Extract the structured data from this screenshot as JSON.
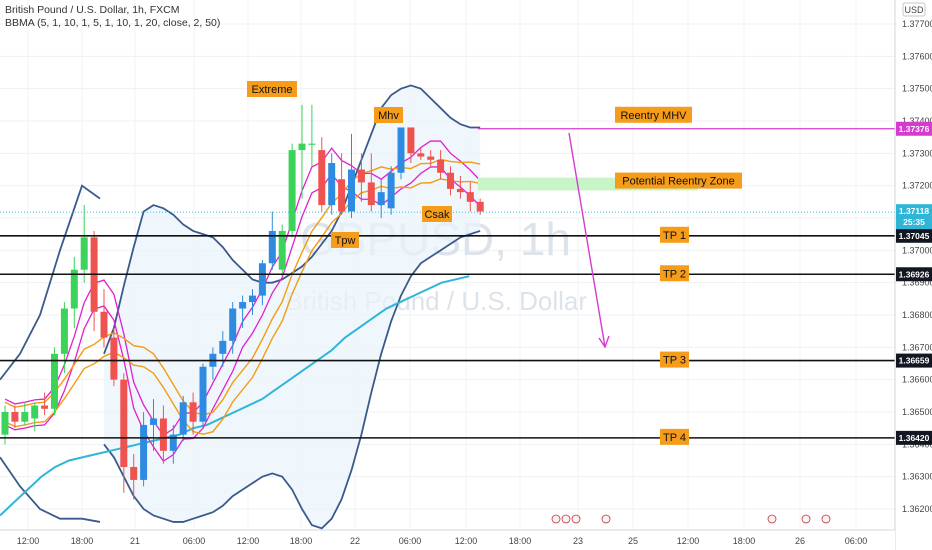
{
  "header": {
    "symbol_line": "British Pound / U.S. Dollar, 1h, FXCM",
    "indicator_line": "BBMA (5, 1, 10, 1, 5, 1, 10, 1, 20, close, 2, 50)"
  },
  "currency": "USD",
  "watermark": {
    "ticker": "GBPUSD, 1h",
    "name": "British Pound / U.S. Dollar"
  },
  "chart_data": {
    "type": "candlestick",
    "y_axis": {
      "range": [
        1.3615,
        1.378
      ],
      "ticks": [
        "1.37700",
        "1.37600",
        "1.37500",
        "1.37400",
        "1.37300",
        "1.37200",
        "1.37100",
        "1.37000",
        "1.36900",
        "1.36800",
        "1.36700",
        "1.36600",
        "1.36500",
        "1.36400",
        "1.36300",
        "1.36200"
      ]
    },
    "x_axis": {
      "ticks": [
        "12:00",
        "18:00",
        "21",
        "06:00",
        "12:00",
        "18:00",
        "22",
        "06:00",
        "12:00",
        "18:00",
        "23",
        "25",
        "12:00",
        "18:00",
        "26",
        "06:00"
      ]
    },
    "candles": [
      {
        "o": 1.3643,
        "h": 1.3652,
        "l": 1.364,
        "c": 1.365
      },
      {
        "o": 1.365,
        "h": 1.3652,
        "l": 1.3645,
        "c": 1.3647
      },
      {
        "o": 1.3647,
        "h": 1.3653,
        "l": 1.3646,
        "c": 1.365
      },
      {
        "o": 1.3648,
        "h": 1.3653,
        "l": 1.3644,
        "c": 1.3652
      },
      {
        "o": 1.3652,
        "h": 1.3656,
        "l": 1.3649,
        "c": 1.3651
      },
      {
        "o": 1.3651,
        "h": 1.367,
        "l": 1.3649,
        "c": 1.3668
      },
      {
        "o": 1.3668,
        "h": 1.3684,
        "l": 1.3662,
        "c": 1.3682
      },
      {
        "o": 1.3682,
        "h": 1.3698,
        "l": 1.3676,
        "c": 1.3694
      },
      {
        "o": 1.3694,
        "h": 1.3714,
        "l": 1.369,
        "c": 1.3704
      },
      {
        "o": 1.3704,
        "h": 1.3706,
        "l": 1.3675,
        "c": 1.3681
      },
      {
        "o": 1.3681,
        "h": 1.3688,
        "l": 1.367,
        "c": 1.3673
      },
      {
        "o": 1.3673,
        "h": 1.3676,
        "l": 1.3658,
        "c": 1.366
      },
      {
        "o": 1.366,
        "h": 1.3662,
        "l": 1.3625,
        "c": 1.3633
      },
      {
        "o": 1.3633,
        "h": 1.3637,
        "l": 1.3623,
        "c": 1.3629
      },
      {
        "o": 1.3629,
        "h": 1.365,
        "l": 1.3627,
        "c": 1.3646
      },
      {
        "o": 1.3646,
        "h": 1.3654,
        "l": 1.3638,
        "c": 1.3648
      },
      {
        "o": 1.3648,
        "h": 1.3652,
        "l": 1.3634,
        "c": 1.3638
      },
      {
        "o": 1.3638,
        "h": 1.3646,
        "l": 1.3634,
        "c": 1.3643
      },
      {
        "o": 1.3643,
        "h": 1.3655,
        "l": 1.3641,
        "c": 1.3653
      },
      {
        "o": 1.3653,
        "h": 1.3656,
        "l": 1.3643,
        "c": 1.3647
      },
      {
        "o": 1.3647,
        "h": 1.3665,
        "l": 1.3645,
        "c": 1.3664
      },
      {
        "o": 1.3664,
        "h": 1.367,
        "l": 1.366,
        "c": 1.3668
      },
      {
        "o": 1.3668,
        "h": 1.3675,
        "l": 1.3664,
        "c": 1.3672
      },
      {
        "o": 1.3672,
        "h": 1.3684,
        "l": 1.3668,
        "c": 1.3682
      },
      {
        "o": 1.3682,
        "h": 1.3686,
        "l": 1.3676,
        "c": 1.3684
      },
      {
        "o": 1.3684,
        "h": 1.3688,
        "l": 1.368,
        "c": 1.3686
      },
      {
        "o": 1.3686,
        "h": 1.3697,
        "l": 1.3683,
        "c": 1.3696
      },
      {
        "o": 1.3696,
        "h": 1.3712,
        "l": 1.3694,
        "c": 1.3706
      },
      {
        "o": 1.3694,
        "h": 1.3708,
        "l": 1.3692,
        "c": 1.3706
      },
      {
        "o": 1.3706,
        "h": 1.3733,
        "l": 1.3704,
        "c": 1.3731
      },
      {
        "o": 1.3731,
        "h": 1.3745,
        "l": 1.3716,
        "c": 1.3733
      },
      {
        "o": 1.3733,
        "h": 1.3745,
        "l": 1.3726,
        "c": 1.3733
      },
      {
        "o": 1.3731,
        "h": 1.3735,
        "l": 1.3712,
        "c": 1.3714
      },
      {
        "o": 1.3714,
        "h": 1.373,
        "l": 1.3711,
        "c": 1.3727
      },
      {
        "o": 1.3722,
        "h": 1.373,
        "l": 1.3711,
        "c": 1.3712
      },
      {
        "o": 1.3712,
        "h": 1.3736,
        "l": 1.371,
        "c": 1.3725
      },
      {
        "o": 1.3725,
        "h": 1.373,
        "l": 1.3715,
        "c": 1.3721
      },
      {
        "o": 1.3721,
        "h": 1.373,
        "l": 1.3712,
        "c": 1.3714
      },
      {
        "o": 1.3714,
        "h": 1.3722,
        "l": 1.371,
        "c": 1.3718
      },
      {
        "o": 1.3713,
        "h": 1.3726,
        "l": 1.3711,
        "c": 1.3724
      },
      {
        "o": 1.3724,
        "h": 1.3738,
        "l": 1.3722,
        "c": 1.3738
      },
      {
        "o": 1.3738,
        "h": 1.3738,
        "l": 1.3727,
        "c": 1.373
      },
      {
        "o": 1.373,
        "h": 1.3732,
        "l": 1.3728,
        "c": 1.3729
      },
      {
        "o": 1.3729,
        "h": 1.3731,
        "l": 1.3726,
        "c": 1.3728
      },
      {
        "o": 1.3728,
        "h": 1.3731,
        "l": 1.3722,
        "c": 1.3724
      },
      {
        "o": 1.3724,
        "h": 1.3726,
        "l": 1.3717,
        "c": 1.3719
      },
      {
        "o": 1.3719,
        "h": 1.3723,
        "l": 1.3716,
        "c": 1.3718
      },
      {
        "o": 1.3718,
        "h": 1.3721,
        "l": 1.3712,
        "c": 1.3715
      },
      {
        "o": 1.3715,
        "h": 1.3716,
        "l": 1.3711,
        "c": 1.3712
      }
    ],
    "indicator_bands": {
      "bb_upper": [
        1.3668,
        1.3676,
        1.3689,
        1.3701,
        1.3712,
        1.3714,
        1.3713,
        1.3711,
        1.3708,
        1.3706,
        1.3705,
        1.3704,
        1.3701,
        1.3697,
        1.3694,
        1.3691,
        1.369,
        1.369,
        1.3691,
        1.3693,
        1.3695,
        1.3698,
        1.3702,
        1.3706,
        1.3712,
        1.372,
        1.3728,
        1.3736,
        1.3744,
        1.3748,
        1.375,
        1.3751,
        1.375,
        1.3747,
        1.3744,
        1.3741,
        1.3739,
        1.3738,
        1.3738
      ],
      "bb_lower": [
        1.364,
        1.3636,
        1.363,
        1.3624,
        1.362,
        1.3618,
        1.3617,
        1.3616,
        1.3616,
        1.3617,
        1.3618,
        1.3619,
        1.3621,
        1.3624,
        1.3626,
        1.3628,
        1.363,
        1.3631,
        1.363,
        1.3626,
        1.362,
        1.3615,
        1.3614,
        1.3617,
        1.3623,
        1.3632,
        1.3643,
        1.3656,
        1.3668,
        1.3678,
        1.3686,
        1.3692,
        1.3696,
        1.3698,
        1.37,
        1.3702,
        1.3704,
        1.3705,
        1.3706
      ],
      "ema50": [
        1.3618,
        1.3622,
        1.3626,
        1.363,
        1.3633,
        1.3635,
        1.3636,
        1.3637,
        1.3638,
        1.3639,
        1.364,
        1.3641,
        1.3642,
        1.3643,
        1.3645,
        1.3646,
        1.3648,
        1.365,
        1.3652,
        1.3654,
        1.3657,
        1.366,
        1.3663,
        1.3666,
        1.3669,
        1.3673,
        1.3676,
        1.3679,
        1.3682,
        1.3684,
        1.3686,
        1.3688,
        1.369,
        1.3691,
        1.3692
      ]
    },
    "levels": [
      {
        "label": "TP 1",
        "value": 1.37045,
        "tag": "1.37045"
      },
      {
        "label": "TP 2",
        "value": 1.36926,
        "tag": "1.36926"
      },
      {
        "label": "TP 3",
        "value": 1.36659,
        "tag": "1.36659"
      },
      {
        "label": "TP 4",
        "value": 1.3642,
        "tag": "1.36420"
      }
    ],
    "reentry_mhv": {
      "label": "Reentry MHV",
      "value": 1.37376,
      "tag": "1.37376"
    },
    "potential_zone": {
      "label": "Potential Reentry Zone",
      "top": 1.37225,
      "bottom": 1.37185
    },
    "last_price": {
      "tag": "1.37118",
      "countdown": "25:35"
    },
    "annotations": [
      "Extreme",
      "Mhv",
      "Csak",
      "Tpw"
    ],
    "colors": {
      "bull": "#26a69a",
      "bull_candle": "#2e8be0",
      "bull_candle_alt": "#3cd35a",
      "bear_candle": "#ef5350",
      "bb_band": "#3b5a8c",
      "ma_pink": "#e21fcf",
      "ma_orange": "#f39c12",
      "ema50": "#2fb5d8",
      "label_bg": "#f59c1a",
      "zone": "#c8f5c8",
      "mhv_line": "#d63ad1"
    }
  }
}
